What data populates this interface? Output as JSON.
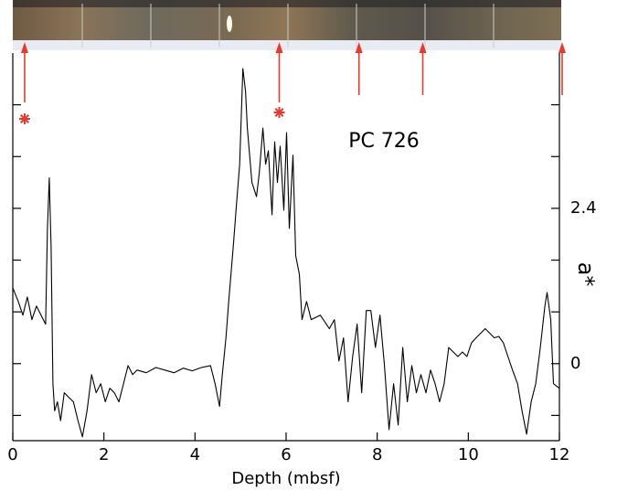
{
  "chart_data": {
    "type": "line",
    "annotation": "PC 726",
    "xlabel": "Depth (mbsf)",
    "ylabel": "a*",
    "color": "#000000",
    "marker_color": "#e8392b",
    "xlim": [
      0,
      12
    ],
    "xticks": [
      0,
      2,
      4,
      6,
      8,
      10,
      12
    ],
    "ylim": [
      -1.19,
      4.8
    ],
    "yticks": [
      0,
      2.4
    ],
    "minor_yticks": [
      -0.8,
      0.8,
      1.6,
      3.2,
      4.0
    ],
    "arrows": [
      0.26,
      5.85,
      7.6,
      9.0,
      12.06
    ],
    "asterisks": [
      0.26,
      5.85
    ],
    "x": [
      0,
      0.12,
      0.22,
      0.32,
      0.42,
      0.52,
      0.62,
      0.72,
      0.76,
      0.8,
      0.84,
      0.88,
      0.92,
      0.98,
      1.05,
      1.13,
      1.23,
      1.33,
      1.43,
      1.53,
      1.63,
      1.73,
      1.83,
      1.93,
      2.03,
      2.13,
      2.23,
      2.33,
      2.43,
      2.53,
      2.63,
      2.73,
      2.93,
      3.14,
      3.34,
      3.54,
      3.74,
      3.94,
      4.14,
      4.34,
      4.44,
      4.54,
      4.6,
      4.68,
      4.74,
      4.84,
      4.9,
      4.98,
      5.05,
      5.11,
      5.15,
      5.25,
      5.35,
      5.41,
      5.49,
      5.55,
      5.61,
      5.69,
      5.75,
      5.81,
      5.87,
      5.95,
      6.01,
      6.07,
      6.15,
      6.21,
      6.29,
      6.35,
      6.45,
      6.55,
      6.75,
      6.95,
      7.06,
      7.16,
      7.26,
      7.36,
      7.46,
      7.56,
      7.66,
      7.76,
      7.86,
      7.96,
      8.06,
      8.16,
      8.26,
      8.36,
      8.46,
      8.56,
      8.66,
      8.76,
      8.86,
      8.96,
      9.07,
      9.17,
      9.27,
      9.37,
      9.47,
      9.57,
      9.67,
      9.77,
      9.87,
      9.97,
      10.07,
      10.17,
      10.27,
      10.37,
      10.47,
      10.57,
      10.67,
      10.77,
      10.87,
      10.97,
      11.08,
      11.18,
      11.28,
      11.38,
      11.48,
      11.58,
      11.68,
      11.73,
      11.81,
      11.87,
      12
    ],
    "values": [
      1.17,
      0.96,
      0.75,
      1.03,
      0.68,
      0.89,
      0.75,
      0.61,
      2.09,
      2.87,
      1.81,
      -0.31,
      -0.73,
      -0.59,
      -0.88,
      -0.45,
      -0.52,
      -0.59,
      -0.88,
      -1.13,
      -0.73,
      -0.17,
      -0.45,
      -0.31,
      -0.59,
      -0.38,
      -0.45,
      -0.59,
      -0.31,
      -0.03,
      -0.17,
      -0.1,
      -0.14,
      -0.06,
      -0.1,
      -0.14,
      -0.07,
      -0.11,
      -0.06,
      -0.03,
      -0.31,
      -0.66,
      -0.17,
      0.4,
      0.96,
      1.81,
      2.37,
      3.08,
      4.56,
      4.21,
      3.64,
      2.8,
      2.58,
      2.94,
      3.64,
      3.08,
      3.29,
      2.3,
      3.43,
      2.8,
      3.36,
      2.37,
      3.57,
      2.09,
      3.22,
      1.67,
      1.38,
      0.68,
      0.96,
      0.68,
      0.75,
      0.54,
      0.68,
      0.04,
      0.4,
      -0.59,
      0.11,
      0.61,
      -0.45,
      0.82,
      0.82,
      0.25,
      0.75,
      -0.03,
      -1.02,
      -0.31,
      -0.95,
      0.25,
      -0.59,
      -0.03,
      -0.45,
      -0.17,
      -0.45,
      -0.1,
      -0.31,
      -0.59,
      -0.31,
      0.25,
      0.18,
      0.11,
      0.18,
      0.11,
      0.32,
      0.4,
      0.47,
      0.54,
      0.47,
      0.4,
      0.42,
      0.32,
      0.11,
      -0.1,
      -0.31,
      -0.73,
      -1.09,
      -0.59,
      -0.31,
      0.25,
      0.89,
      1.1,
      0.68,
      -0.31,
      -0.38
    ]
  }
}
